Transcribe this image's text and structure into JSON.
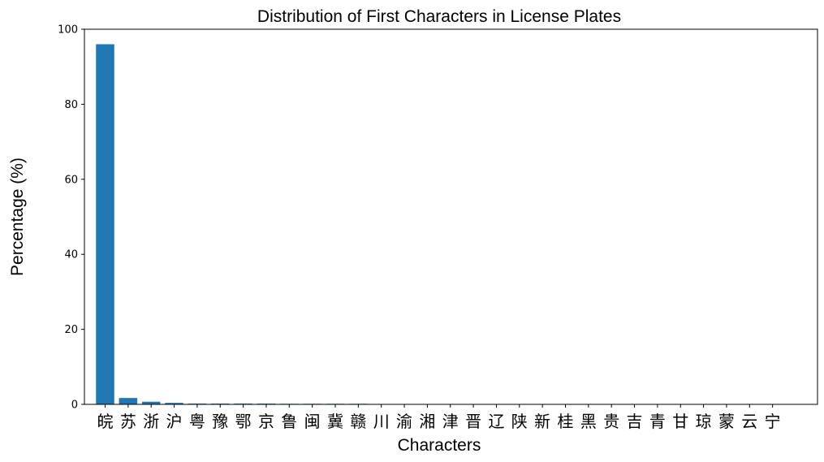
{
  "chart_data": {
    "type": "bar",
    "title": "Distribution of First Characters in License Plates",
    "xlabel": "Characters",
    "ylabel": "Percentage (%)",
    "ylim": [
      0,
      100
    ],
    "yticks": [
      "0",
      "20",
      "40",
      "60",
      "80",
      "100"
    ],
    "grid": false,
    "bar_color": "#1f77b4",
    "categories": [
      "皖",
      "苏",
      "浙",
      "沪",
      "粤",
      "豫",
      "鄂",
      "京",
      "鲁",
      "闽",
      "冀",
      "赣",
      "川",
      "渝",
      "湘",
      "津",
      "晋",
      "辽",
      "陕",
      "新",
      "桂",
      "黑",
      "贵",
      "吉",
      "青",
      "甘",
      "琼",
      "蒙",
      "云",
      "宁"
    ],
    "values": [
      96.0,
      1.7,
      0.7,
      0.4,
      0.2,
      0.2,
      0.2,
      0.2,
      0.15,
      0.15,
      0.15,
      0.15,
      0.1,
      0.05,
      0.05,
      0.05,
      0.03,
      0.03,
      0.03,
      0.03,
      0.02,
      0.02,
      0.02,
      0.02,
      0.01,
      0.01,
      0.01,
      0.01,
      0.01,
      0.01
    ]
  }
}
